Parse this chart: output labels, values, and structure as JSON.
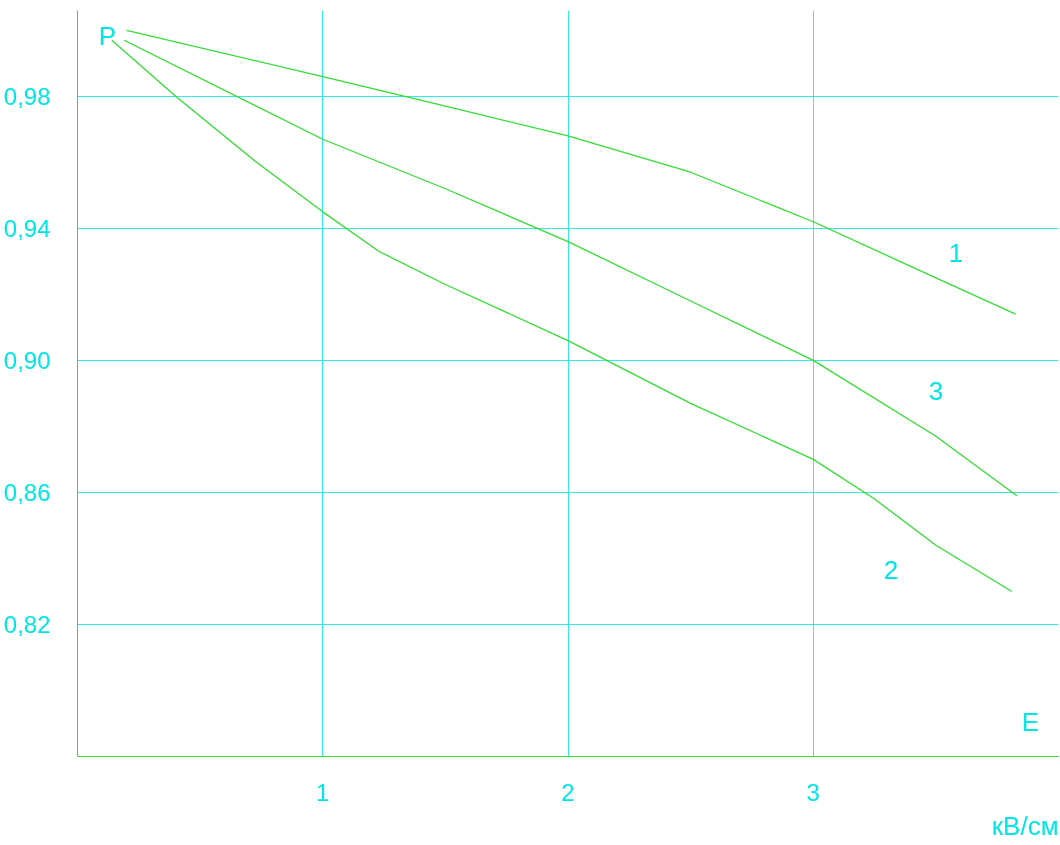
{
  "chart_data": {
    "type": "line",
    "xlabel": "E",
    "ylabel": "P",
    "annotations": [
      "кВ/см"
    ],
    "xlim": [
      0,
      4
    ],
    "ylim": [
      0.78,
      1.006
    ],
    "xticks": [
      1,
      2,
      3
    ],
    "yticks": [
      {
        "value": 0.82,
        "label": "0,82"
      },
      {
        "value": 0.86,
        "label": "0,86"
      },
      {
        "value": 0.9,
        "label": "0,90"
      },
      {
        "value": 0.94,
        "label": "0,94"
      },
      {
        "value": 0.98,
        "label": "0,98"
      }
    ],
    "grid": true,
    "marker": "none",
    "line_style": "solid",
    "series": [
      {
        "name": "1",
        "color": "#33dd33",
        "x": [
          0.2,
          1,
          1.5,
          2,
          2.5,
          3,
          3.5,
          3.825
        ],
        "values": [
          1.0,
          0.986,
          0.977,
          0.968,
          0.957,
          0.942,
          0.925,
          0.914
        ]
      },
      {
        "name": "3",
        "color": "#33dd33",
        "x": [
          0.19,
          1,
          1.5,
          2,
          2.5,
          3,
          3.5,
          3.83
        ],
        "values": [
          0.997,
          0.967,
          0.952,
          0.936,
          0.918,
          0.9,
          0.877,
          0.859
        ]
      },
      {
        "name": "2",
        "color": "#33dd33",
        "x": [
          0.14,
          0.4,
          0.73,
          1,
          1.23,
          1.5,
          2,
          2.5,
          3,
          3.25,
          3.5,
          3.81
        ],
        "values": [
          0.997,
          0.98,
          0.96,
          0.945,
          0.933,
          0.923,
          0.906,
          0.887,
          0.87,
          0.858,
          0.844,
          0.83
        ]
      }
    ]
  }
}
